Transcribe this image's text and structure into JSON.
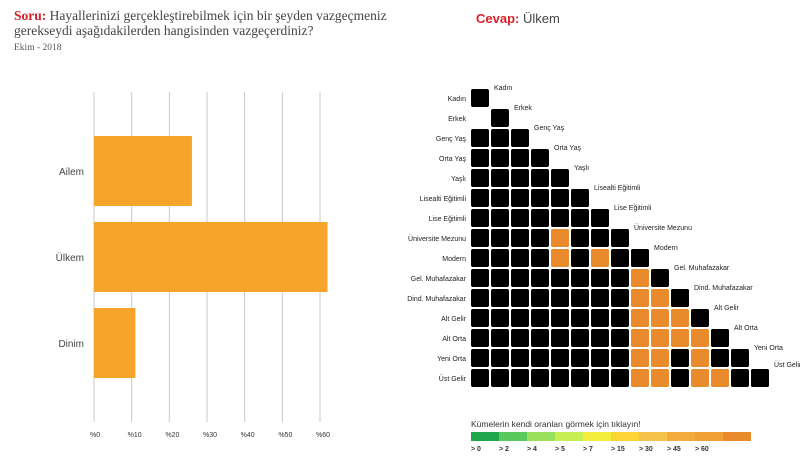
{
  "question": {
    "label": "Soru:",
    "text": "Hayallerinizi gerçekleştirebilmek için bir şeyden vazgeçmeniz gerekseydi aşağıdakilerden hangisinden vazgeçerdiniz?",
    "date": "Ekim - 2018"
  },
  "answer": {
    "label": "Cevap:",
    "value": "Ülkem"
  },
  "chart_data": [
    {
      "type": "bar",
      "orientation": "horizontal",
      "categories": [
        "Ailem",
        "Ülkem",
        "Dinim"
      ],
      "values": [
        26,
        62,
        11
      ],
      "xlim": [
        0,
        60
      ],
      "tick_labels": [
        "%0",
        "%10",
        "%20",
        "%30",
        "%40",
        "%50",
        "%60"
      ],
      "grid": true,
      "bar_color": "#f7a42b"
    },
    {
      "type": "heatmap",
      "layout": "lower-triangular",
      "title": "",
      "row_labels": [
        "Kadın",
        "Erkek",
        "Genç Yaş",
        "Orta Yaş",
        "Yaşlı",
        "Lisealti Eğitimli",
        "Lise Eğitimli",
        "Üniversite Mezunu",
        "Modern",
        "Gel. Muhafazakar",
        "Dind. Muhafazakar",
        "Alt Gelir",
        "Alt Orta",
        "Yeni Orta",
        "Üst Gelir"
      ],
      "cell_color_levels_by_row": [
        [],
        [],
        [
          10,
          10
        ],
        [
          10,
          10,
          10
        ],
        [
          10,
          10,
          10,
          10
        ],
        [
          10,
          10,
          10,
          10,
          10,
          10
        ],
        [
          10,
          10,
          10,
          10,
          10,
          10,
          10
        ],
        [
          10,
          10,
          10,
          10,
          9,
          10,
          10,
          10
        ],
        [
          10,
          10,
          10,
          10,
          9,
          10,
          9,
          10,
          10
        ],
        [
          10,
          10,
          10,
          10,
          10,
          10,
          10,
          10,
          9,
          9
        ],
        [
          10,
          10,
          10,
          10,
          10,
          10,
          10,
          10,
          9,
          9,
          10
        ],
        [
          10,
          10,
          10,
          10,
          10,
          10,
          10,
          10,
          9,
          9,
          9,
          9
        ],
        [
          10,
          10,
          10,
          10,
          10,
          10,
          10,
          10,
          9,
          9,
          9,
          9,
          10
        ],
        [
          10,
          10,
          10,
          10,
          10,
          10,
          10,
          10,
          9,
          9,
          10,
          9,
          10,
          10
        ],
        [
          10,
          10,
          10,
          10,
          10,
          10,
          10,
          10,
          9,
          9,
          10,
          9,
          9,
          10,
          10
        ]
      ],
      "diagonal_level": 10,
      "legend": {
        "title": "Kümelerin kendi oranları görmek için tıklayın!",
        "labels": [
          "> 0",
          "> 2",
          "> 4",
          "> 5",
          "> 7",
          "> 15",
          "> 30",
          "> 45",
          "> 60"
        ],
        "colors": [
          "#1fa64a",
          "#58c95a",
          "#9be05c",
          "#c7ef52",
          "#f3ee3c",
          "#fcd535",
          "#f7c24a",
          "#f3ac3b",
          "#f0a033",
          "#e98a2c"
        ]
      }
    }
  ]
}
